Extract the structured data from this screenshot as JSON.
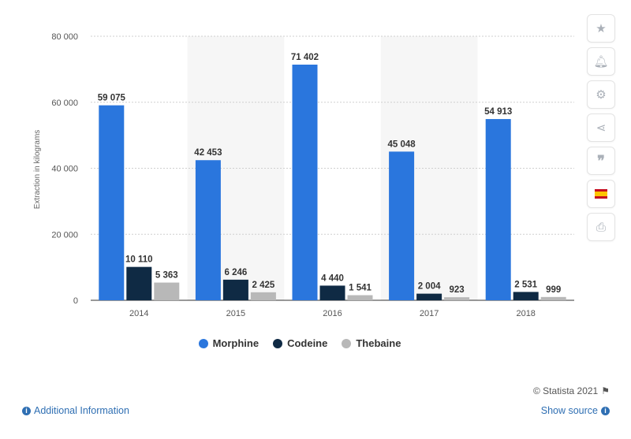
{
  "chart_data": {
    "type": "bar",
    "categories": [
      "2014",
      "2015",
      "2016",
      "2017",
      "2018"
    ],
    "series": [
      {
        "name": "Morphine",
        "color": "#2a76dd",
        "values": [
          59075,
          42453,
          71402,
          45048,
          54913
        ],
        "labels": [
          "59 075",
          "42 453",
          "71 402",
          "45 048",
          "54 913"
        ]
      },
      {
        "name": "Codeine",
        "color": "#0f2a44",
        "values": [
          10110,
          6246,
          4440,
          2004,
          2531
        ],
        "labels": [
          "10 110",
          "6 246",
          "4 440",
          "2 004",
          "2 531"
        ]
      },
      {
        "name": "Thebaine",
        "color": "#b8b8b8",
        "values": [
          5363,
          2425,
          1541,
          923,
          999
        ],
        "labels": [
          "5 363",
          "2 425",
          "1 541",
          "923",
          "999"
        ]
      }
    ],
    "ylabel": "Extraction in kilograms",
    "ylim": [
      0,
      80000
    ],
    "yticks": [
      0,
      20000,
      40000,
      60000,
      80000
    ],
    "ytick_labels": [
      "0",
      "20 000",
      "40 000",
      "60 000",
      "80 000"
    ],
    "grid": true,
    "legend_position": "bottom"
  },
  "legend": [
    {
      "label": "Morphine",
      "color": "#2a76dd"
    },
    {
      "label": "Codeine",
      "color": "#0f2a44"
    },
    {
      "label": "Thebaine",
      "color": "#b8b8b8"
    }
  ],
  "footer": {
    "credit": "© Statista 2021",
    "additional_info": "Additional Information",
    "show_source": "Show source"
  },
  "sidebar_icons": [
    "star-icon",
    "bell-icon",
    "gear-icon",
    "share-icon",
    "quote-icon",
    "spain-flag-icon",
    "print-icon"
  ]
}
